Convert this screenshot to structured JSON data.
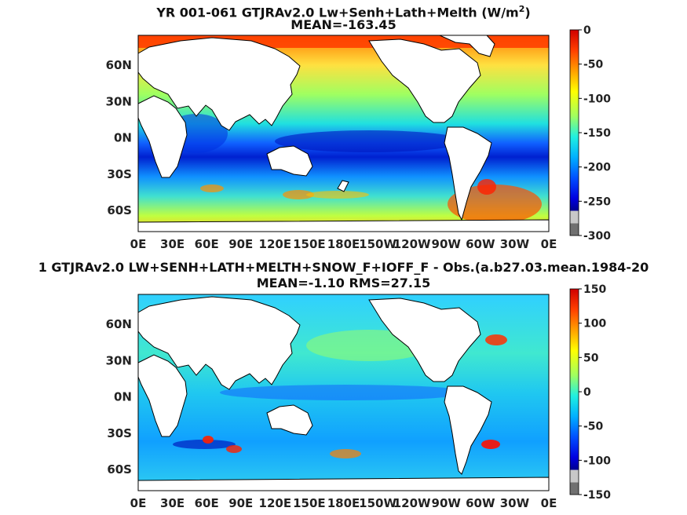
{
  "chart_data": [
    {
      "type": "heatmap",
      "title_prefix": "YR 001-061 GTJRAv2.0 Lw+Senh+Lath+Melth (W/m",
      "title_sup": "2",
      "title_suffix": ")",
      "subtitle": "MEAN=-163.45",
      "x_ticks": [
        "0E",
        "30E",
        "60E",
        "90E",
        "120E",
        "150E",
        "180E",
        "150W",
        "120W",
        "90W",
        "60W",
        "30W",
        "0E"
      ],
      "y_ticks": [
        "60N",
        "30N",
        "0N",
        "30S",
        "60S"
      ],
      "colorbar_ticks": [
        "0",
        "-50",
        "-100",
        "-150",
        "-200",
        "-250",
        "-300"
      ],
      "colorbar_range": [
        -300,
        0
      ],
      "mean": -163.45
    },
    {
      "type": "heatmap",
      "title": "1 GTJRAv2.0 LW+SENH+LATH+MELTH+SNOW_F+IOFF_F - Obs.(a.b27.03.mean.1984-20",
      "subtitle": "MEAN=-1.10 RMS=27.15",
      "x_ticks": [
        "0E",
        "30E",
        "60E",
        "90E",
        "120E",
        "150E",
        "180E",
        "150W",
        "120W",
        "90W",
        "60W",
        "30W",
        "0E"
      ],
      "y_ticks": [
        "60N",
        "30N",
        "0N",
        "30S",
        "60S"
      ],
      "colorbar_ticks": [
        "150",
        "100",
        "50",
        "0",
        "-50",
        "-100",
        "-150"
      ],
      "colorbar_range": [
        -150,
        150
      ],
      "mean": -1.1,
      "rms": 27.15
    }
  ],
  "colors": {
    "land": "#ffffff",
    "coast": "#000000",
    "colormap": [
      "#7f7f7f",
      "#c8c8c8",
      "#00008f",
      "#0000ff",
      "#0060ff",
      "#00bfff",
      "#20f0e0",
      "#7fff7f",
      "#d0ff30",
      "#ffdf00",
      "#ff8000",
      "#ff2000",
      "#c00000"
    ]
  }
}
